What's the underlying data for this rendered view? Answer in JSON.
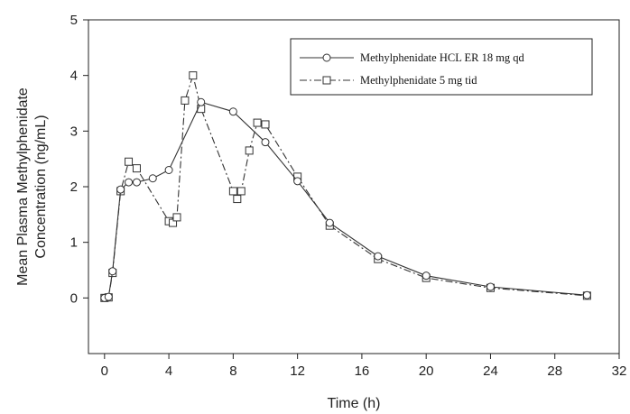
{
  "chart_data": {
    "type": "line",
    "xlabel": "Time (h)",
    "ylabel_line1": "Mean Plasma Methylphenidate",
    "ylabel_line2": "Concentration (ng/mL)",
    "xlim": [
      -1,
      32
    ],
    "ylim": [
      -1,
      5
    ],
    "xticks": [
      0,
      4,
      8,
      12,
      16,
      20,
      24,
      28,
      32
    ],
    "yticks": [
      0,
      1,
      2,
      3,
      4,
      5
    ],
    "legend_position": "top-right",
    "grid": false,
    "series": [
      {
        "name": "Methylphenidate HCL ER 18 mg qd",
        "marker": "circle",
        "line_style": "solid",
        "x": [
          0,
          0.25,
          0.5,
          1,
          1.5,
          2,
          3,
          4,
          6,
          8,
          10,
          12,
          14,
          17,
          20,
          24,
          30
        ],
        "y": [
          0,
          0.02,
          0.48,
          1.95,
          2.08,
          2.08,
          2.15,
          2.3,
          3.52,
          3.35,
          2.8,
          2.1,
          1.35,
          0.75,
          0.4,
          0.2,
          0.05
        ]
      },
      {
        "name": "Methylphenidate 5 mg tid",
        "marker": "square",
        "line_style": "dash-dot",
        "x": [
          0,
          0.25,
          0.5,
          1,
          1.5,
          2,
          4,
          4.25,
          4.5,
          5,
          5.5,
          6,
          8,
          8.25,
          8.5,
          9,
          9.5,
          10,
          12,
          14,
          17,
          20,
          24,
          30
        ],
        "y": [
          0,
          0.01,
          0.45,
          1.92,
          2.45,
          2.33,
          1.38,
          1.35,
          1.45,
          3.55,
          4.0,
          3.4,
          1.92,
          1.78,
          1.92,
          2.65,
          3.15,
          3.12,
          2.18,
          1.3,
          0.7,
          0.36,
          0.18,
          0.04
        ]
      }
    ]
  }
}
